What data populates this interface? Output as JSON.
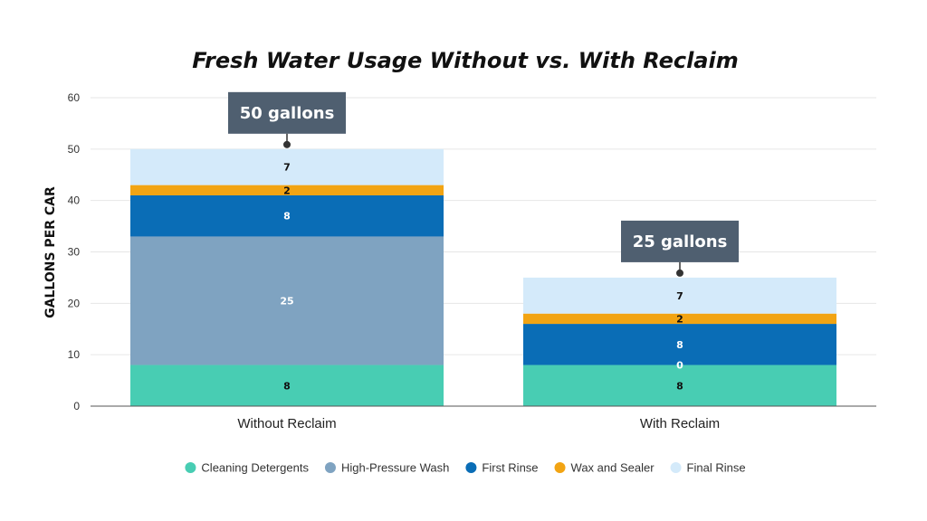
{
  "chart_data": {
    "type": "bar",
    "stacked": true,
    "title": "Fresh Water Usage Without vs. With Reclaim",
    "xlabel": "",
    "ylabel": "GALLONS PER CAR",
    "ylim": [
      0,
      60
    ],
    "yticks": [
      0,
      10,
      20,
      30,
      40,
      50,
      60
    ],
    "grid": true,
    "legend_position": "bottom",
    "categories": [
      "Without Reclaim",
      "With Reclaim"
    ],
    "series": [
      {
        "name": "Cleaning Detergents",
        "color": "#48cdb3",
        "values": [
          8,
          8
        ],
        "label_color": "#111111"
      },
      {
        "name": "High-Pressure Wash",
        "color": "#7fa3c1",
        "values": [
          25,
          0
        ],
        "label_color": "#ffffff"
      },
      {
        "name": "First Rinse",
        "color": "#0a6db6",
        "values": [
          8,
          8
        ],
        "label_color": "#ffffff"
      },
      {
        "name": "Wax and Sealer",
        "color": "#f2a413",
        "values": [
          2,
          2
        ],
        "label_color": "#111111"
      },
      {
        "name": "Final Rinse",
        "color": "#d4eafa",
        "values": [
          7,
          7
        ],
        "label_color": "#111111"
      }
    ],
    "totals_labels": [
      "50 gallons",
      "25 gallons"
    ],
    "callout_color": "#4f5f70"
  }
}
